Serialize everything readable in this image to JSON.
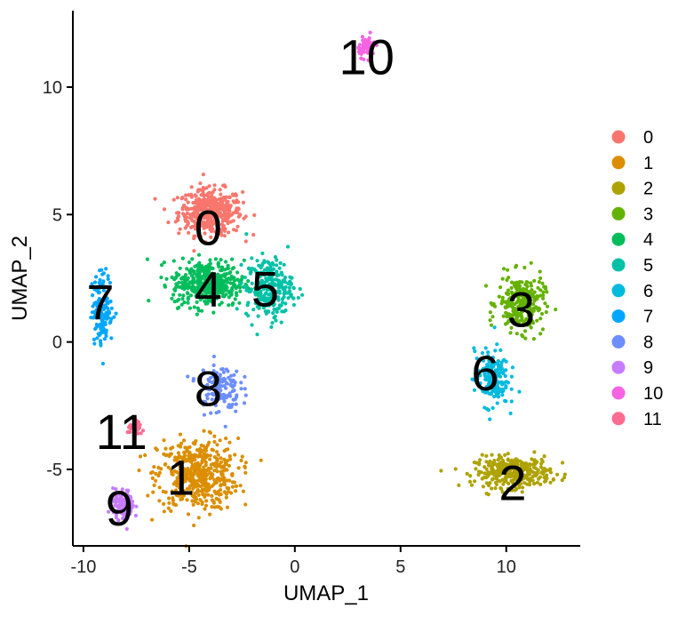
{
  "chart_data": {
    "type": "scatter",
    "title": "",
    "xlabel": "UMAP_1",
    "ylabel": "UMAP_2",
    "xlim": [
      -10.5,
      13.5
    ],
    "ylim": [
      -8,
      13
    ],
    "xticks": [
      -10,
      -5,
      0,
      5,
      10
    ],
    "yticks": [
      -5,
      0,
      5,
      10
    ],
    "xtick_labels": [
      "-10",
      "-5",
      "0",
      "5",
      "10"
    ],
    "ytick_labels": [
      "-5",
      "0",
      "5",
      "10"
    ],
    "grid": false,
    "legend_position": "right",
    "series": [
      {
        "name": "0",
        "color": "#F8766D",
        "label_pos": [
          -4.1,
          4.5
        ],
        "center": [
          -4.0,
          5.1
        ],
        "spread": [
          1.5,
          0.9
        ],
        "count": 420
      },
      {
        "name": "1",
        "color": "#DB8E00",
        "label_pos": [
          -5.4,
          -5.3
        ],
        "center": [
          -4.6,
          -5.2
        ],
        "spread": [
          1.9,
          1.4
        ],
        "count": 480
      },
      {
        "name": "2",
        "color": "#AEA200",
        "label_pos": [
          10.3,
          -5.5
        ],
        "center": [
          10.3,
          -5.1
        ],
        "spread": [
          1.8,
          0.6
        ],
        "count": 340
      },
      {
        "name": "3",
        "color": "#64B200",
        "label_pos": [
          10.7,
          1.3
        ],
        "center": [
          10.7,
          1.5
        ],
        "spread": [
          1.1,
          1.1
        ],
        "count": 260
      },
      {
        "name": "4",
        "color": "#00BD5C",
        "label_pos": [
          -4.1,
          2.1
        ],
        "center": [
          -4.1,
          2.3
        ],
        "spread": [
          1.7,
          0.9
        ],
        "count": 420
      },
      {
        "name": "5",
        "color": "#00C1A7",
        "label_pos": [
          -1.4,
          2.1
        ],
        "center": [
          -1.2,
          2.1
        ],
        "spread": [
          1.1,
          1.2
        ],
        "count": 260
      },
      {
        "name": "6",
        "color": "#00BADE",
        "label_pos": [
          9.0,
          -1.2
        ],
        "center": [
          9.3,
          -1.4
        ],
        "spread": [
          0.8,
          1.1
        ],
        "count": 180
      },
      {
        "name": "7",
        "color": "#00A6FF",
        "label_pos": [
          -9.2,
          1.6
        ],
        "center": [
          -9.1,
          1.3
        ],
        "spread": [
          0.5,
          1.4
        ],
        "count": 150
      },
      {
        "name": "8",
        "color": "#6D8EFF",
        "label_pos": [
          -4.1,
          -1.8
        ],
        "center": [
          -3.6,
          -1.8
        ],
        "spread": [
          1.0,
          1.0
        ],
        "count": 130
      },
      {
        "name": "9",
        "color": "#C77CFF",
        "label_pos": [
          -8.3,
          -6.5
        ],
        "center": [
          -8.1,
          -6.4
        ],
        "spread": [
          0.5,
          0.6
        ],
        "count": 100
      },
      {
        "name": "10",
        "color": "#F564E3",
        "label_pos": [
          3.4,
          11.2
        ],
        "center": [
          3.4,
          11.6
        ],
        "spread": [
          0.4,
          0.4
        ],
        "count": 60
      },
      {
        "name": "11",
        "color": "#FF6C91",
        "label_pos": [
          -8.2,
          -3.5
        ],
        "center": [
          -7.5,
          -3.4
        ],
        "spread": [
          0.4,
          0.3
        ],
        "count": 40
      }
    ]
  }
}
